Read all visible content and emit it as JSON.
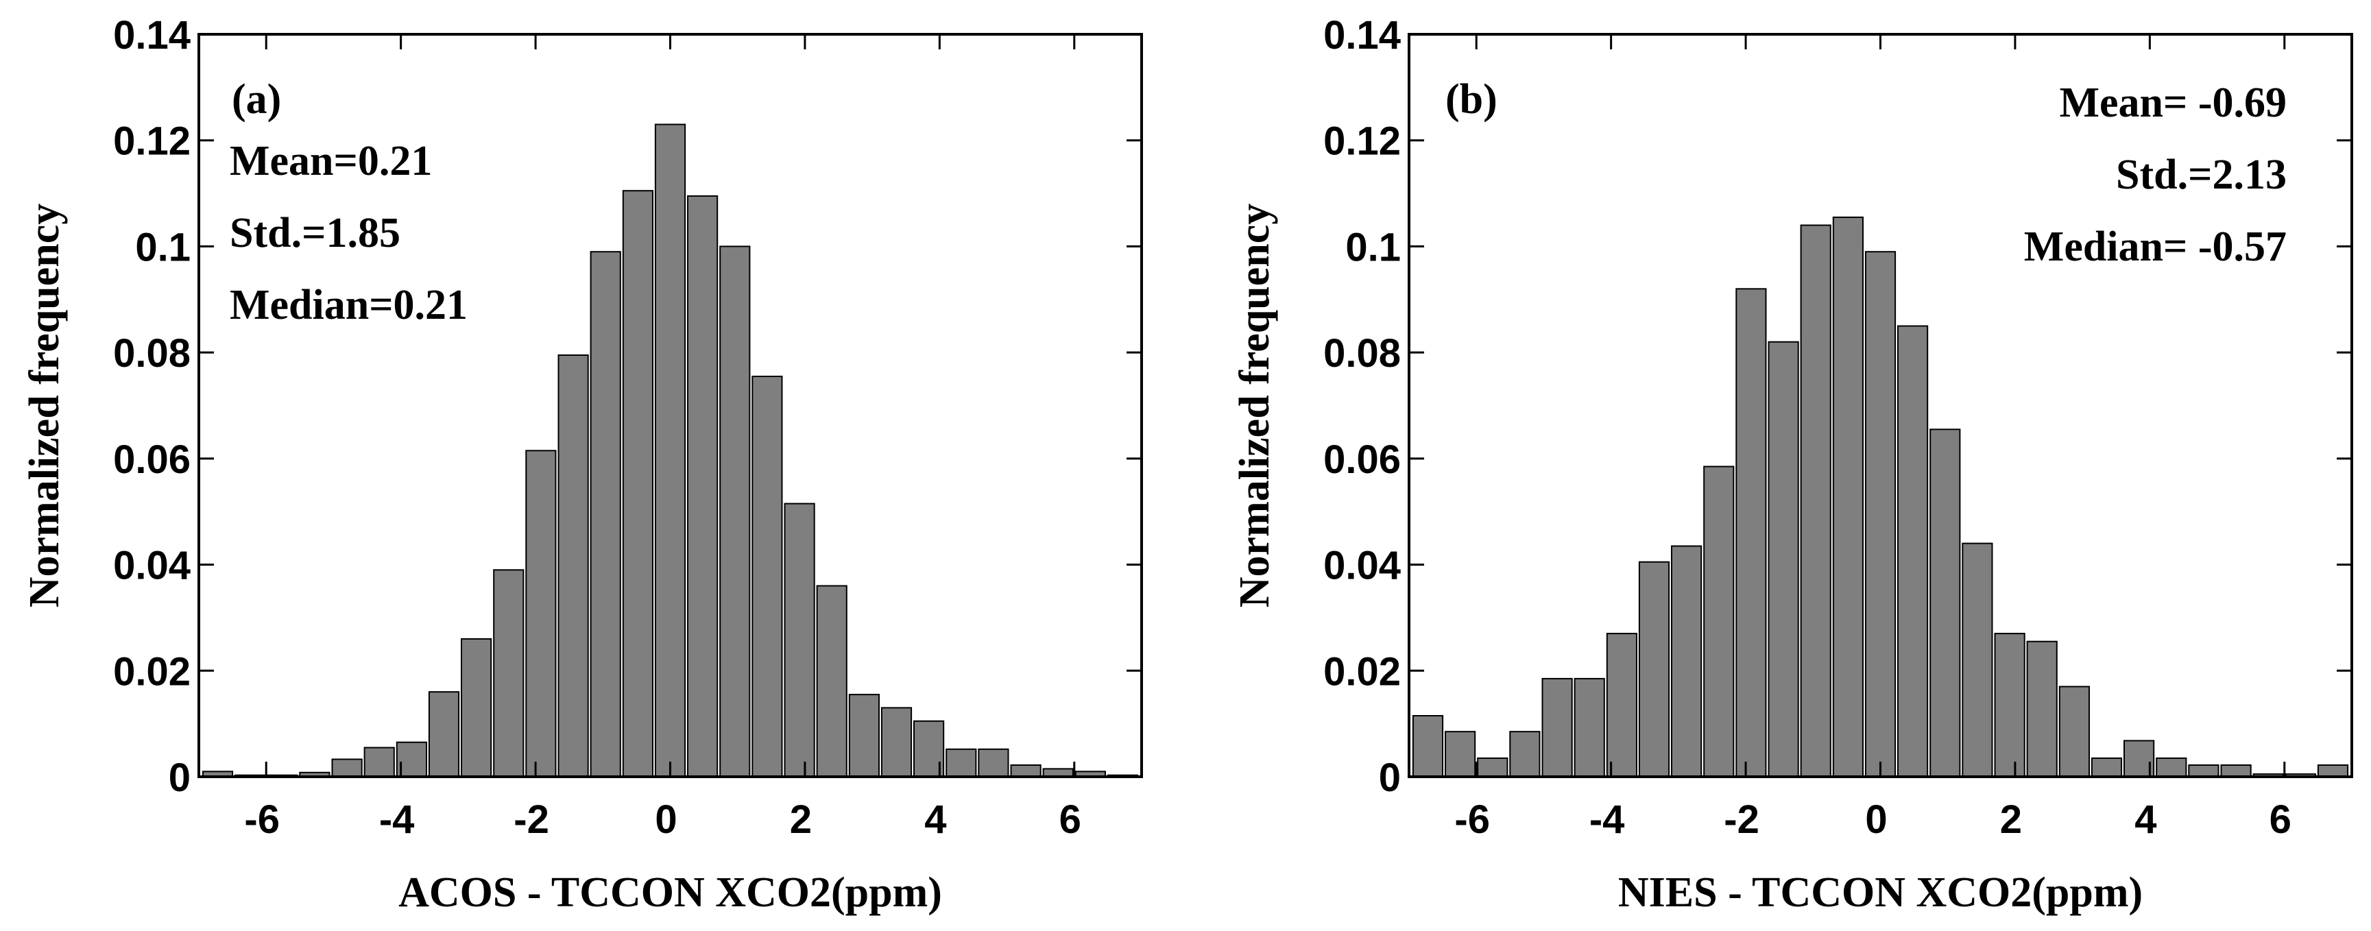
{
  "chart_data": [
    {
      "type": "bar",
      "panel_label": "(a)",
      "title": "",
      "xlabel": "ACOS - TCCON XCO2(ppm)",
      "ylabel": "Normalized frequency",
      "xlim": [
        -7,
        7
      ],
      "ylim": [
        0,
        0.14
      ],
      "xticks": [
        -6,
        -4,
        -2,
        0,
        2,
        4,
        6
      ],
      "yticks": [
        0,
        0.02,
        0.04,
        0.06,
        0.08,
        0.1,
        0.12,
        0.14
      ],
      "ytick_labels": [
        "0",
        "0.02",
        "0.04",
        "0.06",
        "0.08",
        "0.1",
        "0.12",
        "0.14"
      ],
      "bin_width": 0.48,
      "bin_centers": [
        -6.72,
        -6.24,
        -5.76,
        -5.28,
        -4.8,
        -4.32,
        -3.84,
        -3.36,
        -2.88,
        -2.4,
        -1.92,
        -1.44,
        -0.96,
        -0.48,
        0.0,
        0.48,
        0.96,
        1.44,
        1.92,
        2.4,
        2.88,
        3.36,
        3.84,
        4.32,
        4.8,
        5.28,
        5.76,
        6.24,
        6.72
      ],
      "values": [
        0.001,
        0.0003,
        0.0003,
        0.0008,
        0.0033,
        0.0055,
        0.0065,
        0.016,
        0.026,
        0.039,
        0.0615,
        0.0795,
        0.099,
        0.1105,
        0.123,
        0.1095,
        0.1,
        0.0755,
        0.0515,
        0.036,
        0.0155,
        0.013,
        0.0105,
        0.0052,
        0.0052,
        0.0022,
        0.0015,
        0.001,
        0.0003
      ],
      "annotations": [
        "Mean=0.21",
        "Std.=1.85",
        "Median=0.21"
      ],
      "annotation_position": "top-left",
      "grid": false
    },
    {
      "type": "bar",
      "panel_label": "(b)",
      "title": "",
      "xlabel": "NIES - TCCON XCO2(ppm)",
      "ylabel": "Normalized frequency",
      "xlim": [
        -7,
        7
      ],
      "ylim": [
        0,
        0.14
      ],
      "xticks": [
        -6,
        -4,
        -2,
        0,
        2,
        4,
        6
      ],
      "yticks": [
        0,
        0.02,
        0.04,
        0.06,
        0.08,
        0.1,
        0.12,
        0.14
      ],
      "ytick_labels": [
        "0",
        "0.02",
        "0.04",
        "0.06",
        "0.08",
        "0.1",
        "0.12",
        "0.14"
      ],
      "bin_width": 0.48,
      "bin_centers": [
        -6.72,
        -6.24,
        -5.76,
        -5.28,
        -4.8,
        -4.32,
        -3.84,
        -3.36,
        -2.88,
        -2.4,
        -1.92,
        -1.44,
        -0.96,
        -0.48,
        0.0,
        0.48,
        0.96,
        1.44,
        1.92,
        2.4,
        2.88,
        3.36,
        3.84,
        4.32,
        4.8,
        5.28,
        5.76,
        6.24,
        6.72
      ],
      "values": [
        0.0115,
        0.0085,
        0.0035,
        0.0085,
        0.0185,
        0.0185,
        0.027,
        0.0405,
        0.0435,
        0.0585,
        0.092,
        0.082,
        0.104,
        0.1055,
        0.099,
        0.085,
        0.0655,
        0.044,
        0.027,
        0.0255,
        0.017,
        0.0035,
        0.0068,
        0.0035,
        0.0022,
        0.0022,
        0.0005,
        0.0005,
        0.0022
      ],
      "annotations": [
        "Mean= -0.69",
        "Std.=2.13",
        "Median= -0.57"
      ],
      "annotation_position": "top-right",
      "grid": false
    }
  ]
}
